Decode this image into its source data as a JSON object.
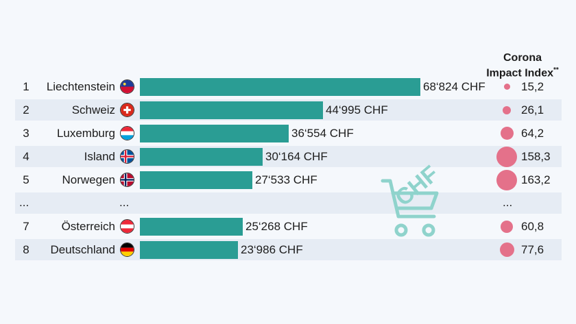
{
  "header": {
    "line1": "Corona",
    "line2": "Impact Index",
    "footnote_mark": "**"
  },
  "ellipsis": {
    "rank": "...",
    "country": "...",
    "cii": "..."
  },
  "watermark": {
    "text": "CHF",
    "icon": "shopping-cart-icon"
  },
  "colors": {
    "bar": "#2a9d94",
    "bubble": "#e4718a",
    "row_shade": "#e6ecf4",
    "background": "#f5f8fc"
  },
  "chart_data": {
    "type": "bar",
    "orientation": "horizontal",
    "title": "",
    "unit": "CHF",
    "categories": [
      "Liechtenstein",
      "Schweiz",
      "Luxemburg",
      "Island",
      "Norwegen",
      "Österreich",
      "Deutschland"
    ],
    "ranks": [
      "1",
      "2",
      "3",
      "4",
      "5",
      "7",
      "8"
    ],
    "values": [
      68824,
      44995,
      36554,
      30164,
      27533,
      25268,
      23986
    ],
    "value_labels": [
      "68‘824 CHF",
      "44‘995 CHF",
      "36‘554 CHF",
      "30‘164 CHF",
      "27‘533 CHF",
      "25‘268 CHF",
      "23‘986 CHF"
    ],
    "flags": [
      "liechtenstein-flag-icon",
      "switzerland-flag-icon",
      "luxembourg-flag-icon",
      "iceland-flag-icon",
      "norway-flag-icon",
      "austria-flag-icon",
      "germany-flag-icon"
    ],
    "corona_impact_index": [
      15.2,
      26.1,
      64.2,
      158.3,
      163.2,
      60.8,
      77.6
    ],
    "corona_impact_index_labels": [
      "15,2",
      "26,1",
      "64,2",
      "158,3",
      "163,2",
      "60,8",
      "77,6"
    ],
    "legend": "none",
    "grid": false
  }
}
